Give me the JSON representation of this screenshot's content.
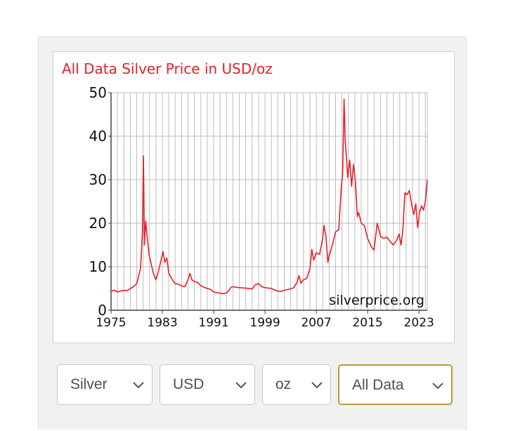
{
  "watermark": "silverprice.org",
  "controls": [
    {
      "label": "Silver",
      "icon": "chevron-down-icon"
    },
    {
      "label": "USD",
      "icon": "chevron-down-icon"
    },
    {
      "label": "oz",
      "icon": "chevron-down-icon"
    },
    {
      "label": "All Data",
      "icon": "chevron-down-icon",
      "active": true
    }
  ],
  "colors": {
    "line": "#e8202a",
    "title": "#e8202a",
    "grid": "#bdbdbd",
    "active_border": "#b99a37"
  },
  "chart_data": {
    "type": "line",
    "title": "All Data Silver Price in USD/oz",
    "xlabel": "",
    "ylabel": "",
    "xlim": [
      1975,
      2024.3
    ],
    "ylim": [
      0,
      50
    ],
    "x_ticks": [
      "1975",
      "1983",
      "1991",
      "1999",
      "2007",
      "2015",
      "2023"
    ],
    "y_ticks": [
      "0",
      "10",
      "20",
      "30",
      "40",
      "50"
    ],
    "grid": true,
    "series": [
      {
        "x": [
          1975.0,
          1975.5,
          1976.0,
          1976.5,
          1977.0,
          1977.5,
          1978.0,
          1978.5,
          1979.0,
          1979.3,
          1979.6,
          1979.9,
          1980.05,
          1980.2,
          1980.4,
          1980.7,
          1980.9,
          1981.2,
          1981.6,
          1982.0,
          1982.4,
          1982.8,
          1983.1,
          1983.4,
          1983.7,
          1984.0,
          1984.5,
          1985.0,
          1985.5,
          1986.0,
          1986.5,
          1987.0,
          1987.3,
          1987.6,
          1988.0,
          1988.5,
          1989.0,
          1990.0,
          1990.5,
          1991.0,
          1992.0,
          1992.5,
          1993.0,
          1993.4,
          1993.7,
          1994.0,
          1995.0,
          1996.0,
          1997.0,
          1997.5,
          1998.0,
          1998.5,
          1999.0,
          2000.0,
          2001.0,
          2001.5,
          2002.0,
          2003.0,
          2003.5,
          2004.0,
          2004.3,
          2004.6,
          2005.0,
          2005.5,
          2006.0,
          2006.3,
          2006.6,
          2007.0,
          2007.5,
          2008.0,
          2008.2,
          2008.5,
          2008.8,
          2009.0,
          2009.5,
          2010.0,
          2010.5,
          2010.9,
          2011.1,
          2011.33,
          2011.5,
          2011.7,
          2011.9,
          2012.2,
          2012.5,
          2012.8,
          2013.1,
          2013.4,
          2013.6,
          2014.0,
          2014.5,
          2015.0,
          2015.5,
          2016.0,
          2016.5,
          2017.0,
          2017.5,
          2018.0,
          2018.5,
          2019.0,
          2019.5,
          2019.9,
          2020.2,
          2020.5,
          2020.8,
          2021.1,
          2021.5,
          2021.9,
          2022.2,
          2022.5,
          2022.8,
          2023.1,
          2023.4,
          2023.7,
          2024.0,
          2024.3
        ],
        "y": [
          4.4,
          4.6,
          4.2,
          4.4,
          4.6,
          4.5,
          5.0,
          5.4,
          6.1,
          7.8,
          9.5,
          18.0,
          35.5,
          15.0,
          20.5,
          16.0,
          13.0,
          11.0,
          8.5,
          7.0,
          9.0,
          11.5,
          13.5,
          11.0,
          12.0,
          8.5,
          7.2,
          6.1,
          6.0,
          5.6,
          5.4,
          7.0,
          8.5,
          7.0,
          6.6,
          6.4,
          5.6,
          5.0,
          4.8,
          4.2,
          3.9,
          3.8,
          4.0,
          4.6,
          5.3,
          5.4,
          5.2,
          5.1,
          4.9,
          5.9,
          6.1,
          5.4,
          5.2,
          5.0,
          4.4,
          4.3,
          4.6,
          4.9,
          5.2,
          6.5,
          8.0,
          6.2,
          7.0,
          7.3,
          9.5,
          14.0,
          11.5,
          13.2,
          12.8,
          16.5,
          19.5,
          17.0,
          11.0,
          12.5,
          15.0,
          18.0,
          18.5,
          28.5,
          31.0,
          48.5,
          39.0,
          35.0,
          30.5,
          34.5,
          28.5,
          33.5,
          29.5,
          21.5,
          22.5,
          20.0,
          19.5,
          16.5,
          14.8,
          13.8,
          20.0,
          17.0,
          16.5,
          16.8,
          15.8,
          15.0,
          16.0,
          17.5,
          15.0,
          18.5,
          27.0,
          26.5,
          27.5,
          24.0,
          22.0,
          24.5,
          19.0,
          22.5,
          24.0,
          23.0,
          25.0,
          30.0
        ]
      }
    ]
  }
}
